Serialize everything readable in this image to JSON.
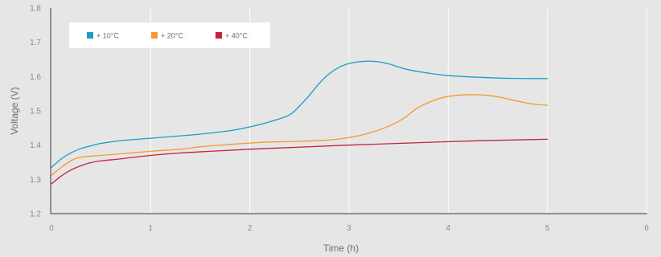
{
  "chart_data": {
    "type": "line",
    "xlabel": "Time (h)",
    "ylabel": "Voltage (V)",
    "xlim": [
      0,
      6
    ],
    "ylim": [
      1.2,
      1.8
    ],
    "x_ticks": [
      "0",
      "1",
      "2",
      "3",
      "4",
      "5",
      "6"
    ],
    "y_ticks": [
      "1.2",
      "1.3",
      "1.4",
      "1.5",
      "1.6",
      "1.7",
      "1.8"
    ],
    "grid": "vertical",
    "legend_position": "top-left",
    "series": [
      {
        "name": "+ 10°C",
        "color": "#1a9cc6",
        "points": [
          [
            0.0,
            1.335
          ],
          [
            0.1,
            1.36
          ],
          [
            0.2,
            1.378
          ],
          [
            0.3,
            1.39
          ],
          [
            0.4,
            1.398
          ],
          [
            0.5,
            1.405
          ],
          [
            0.7,
            1.413
          ],
          [
            1.0,
            1.42
          ],
          [
            1.3,
            1.427
          ],
          [
            1.5,
            1.432
          ],
          [
            1.8,
            1.442
          ],
          [
            2.0,
            1.453
          ],
          [
            2.2,
            1.468
          ],
          [
            2.4,
            1.488
          ],
          [
            2.52,
            1.52
          ],
          [
            2.6,
            1.545
          ],
          [
            2.7,
            1.58
          ],
          [
            2.8,
            1.608
          ],
          [
            2.9,
            1.627
          ],
          [
            3.0,
            1.638
          ],
          [
            3.1,
            1.643
          ],
          [
            3.2,
            1.645
          ],
          [
            3.3,
            1.643
          ],
          [
            3.4,
            1.637
          ],
          [
            3.5,
            1.628
          ],
          [
            3.6,
            1.62
          ],
          [
            3.8,
            1.61
          ],
          [
            4.0,
            1.603
          ],
          [
            4.3,
            1.598
          ],
          [
            4.6,
            1.595
          ],
          [
            5.0,
            1.594
          ]
        ]
      },
      {
        "name": "+ 20°C",
        "color": "#f39a2b",
        "points": [
          [
            0.0,
            1.312
          ],
          [
            0.1,
            1.335
          ],
          [
            0.2,
            1.355
          ],
          [
            0.3,
            1.365
          ],
          [
            0.5,
            1.37
          ],
          [
            0.8,
            1.377
          ],
          [
            1.0,
            1.382
          ],
          [
            1.3,
            1.388
          ],
          [
            1.5,
            1.395
          ],
          [
            1.8,
            1.402
          ],
          [
            2.0,
            1.406
          ],
          [
            2.2,
            1.409
          ],
          [
            2.4,
            1.41
          ],
          [
            2.6,
            1.412
          ],
          [
            2.8,
            1.415
          ],
          [
            3.0,
            1.422
          ],
          [
            3.2,
            1.435
          ],
          [
            3.4,
            1.455
          ],
          [
            3.55,
            1.478
          ],
          [
            3.65,
            1.5
          ],
          [
            3.7,
            1.51
          ],
          [
            3.8,
            1.524
          ],
          [
            3.9,
            1.535
          ],
          [
            4.0,
            1.542
          ],
          [
            4.2,
            1.547
          ],
          [
            4.4,
            1.545
          ],
          [
            4.55,
            1.538
          ],
          [
            4.7,
            1.528
          ],
          [
            4.85,
            1.52
          ],
          [
            5.0,
            1.516
          ]
        ]
      },
      {
        "name": "+ 40°C",
        "color": "#c4243b",
        "points": [
          [
            0.0,
            1.287
          ],
          [
            0.1,
            1.31
          ],
          [
            0.2,
            1.328
          ],
          [
            0.3,
            1.34
          ],
          [
            0.4,
            1.349
          ],
          [
            0.5,
            1.354
          ],
          [
            0.7,
            1.36
          ],
          [
            1.0,
            1.37
          ],
          [
            1.3,
            1.377
          ],
          [
            1.6,
            1.382
          ],
          [
            2.0,
            1.388
          ],
          [
            2.5,
            1.394
          ],
          [
            3.0,
            1.4
          ],
          [
            3.5,
            1.405
          ],
          [
            4.0,
            1.41
          ],
          [
            4.5,
            1.414
          ],
          [
            5.0,
            1.417
          ]
        ]
      }
    ]
  }
}
